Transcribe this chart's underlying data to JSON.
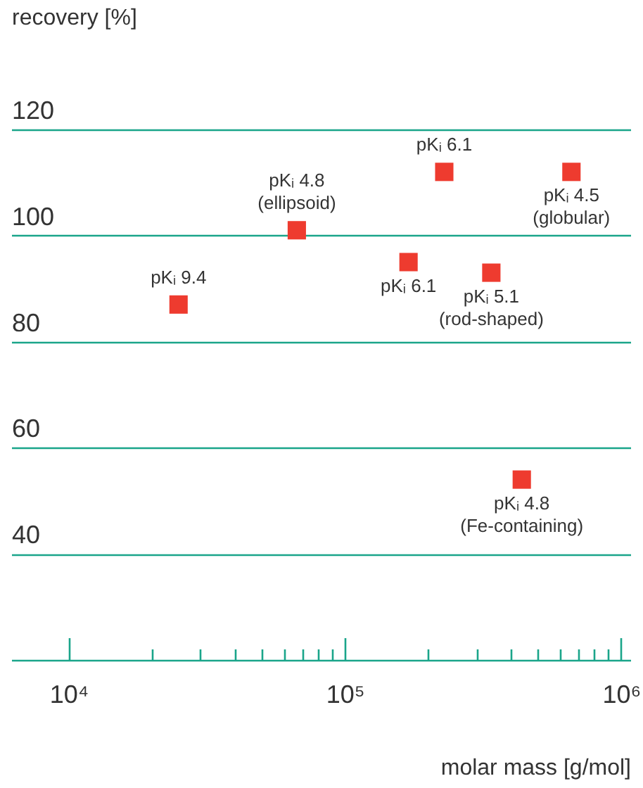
{
  "chart_data": {
    "type": "scatter",
    "xlabel": "molar mass [g/mol]",
    "ylabel": "recovery [%]",
    "x": [
      25000,
      67000,
      229000,
      661000,
      170000,
      339000,
      437000
    ],
    "series": [
      {
        "color": "#ee3b2f",
        "values": [
          87,
          101,
          112,
          112,
          95,
          93,
          54
        ]
      }
    ],
    "log": "x",
    "xlim": [
      6200,
      1080000
    ],
    "xticks": [
      {
        "value": 10000,
        "label": "10⁴"
      },
      {
        "value": 20000,
        "label": null
      },
      {
        "value": 30000,
        "label": null
      },
      {
        "value": 40000,
        "label": null
      },
      {
        "value": 50000,
        "label": null
      },
      {
        "value": 60000,
        "label": null
      },
      {
        "value": 70000,
        "label": null
      },
      {
        "value": 80000,
        "label": null
      },
      {
        "value": 90000,
        "label": null
      },
      {
        "value": 100000,
        "label": "10⁵"
      },
      {
        "value": 200000,
        "label": null
      },
      {
        "value": 300000,
        "label": null
      },
      {
        "value": 400000,
        "label": null
      },
      {
        "value": 500000,
        "label": null
      },
      {
        "value": 600000,
        "label": null
      },
      {
        "value": 700000,
        "label": null
      },
      {
        "value": 800000,
        "label": null
      },
      {
        "value": 900000,
        "label": null
      },
      {
        "value": 1000000,
        "label": "10⁶"
      }
    ],
    "ylim": [
      20,
      120
    ],
    "yticks": [
      40,
      60,
      80,
      100,
      120
    ],
    "grid": "y",
    "marker": "square",
    "annotations": [
      {
        "text": "pKᵢ 9.4",
        "x": 25000,
        "y": 87
      },
      {
        "text": "pKᵢ 4.8\n(ellipsoid)",
        "x": 67000,
        "y": 101
      },
      {
        "text": "pKᵢ 6.1",
        "x": 229000,
        "y": 112
      },
      {
        "text": "pKᵢ 4.5\n(globular)",
        "x": 661000,
        "y": 112
      },
      {
        "text": "pKᵢ 6.1",
        "x": 170000,
        "y": 95
      },
      {
        "text": "pKᵢ 5.1\n(rod-shaped)",
        "x": 339000,
        "y": 93
      },
      {
        "text": "pKᵢ 4.8\n(Fe-containing)",
        "x": 437000,
        "y": 54
      }
    ]
  }
}
